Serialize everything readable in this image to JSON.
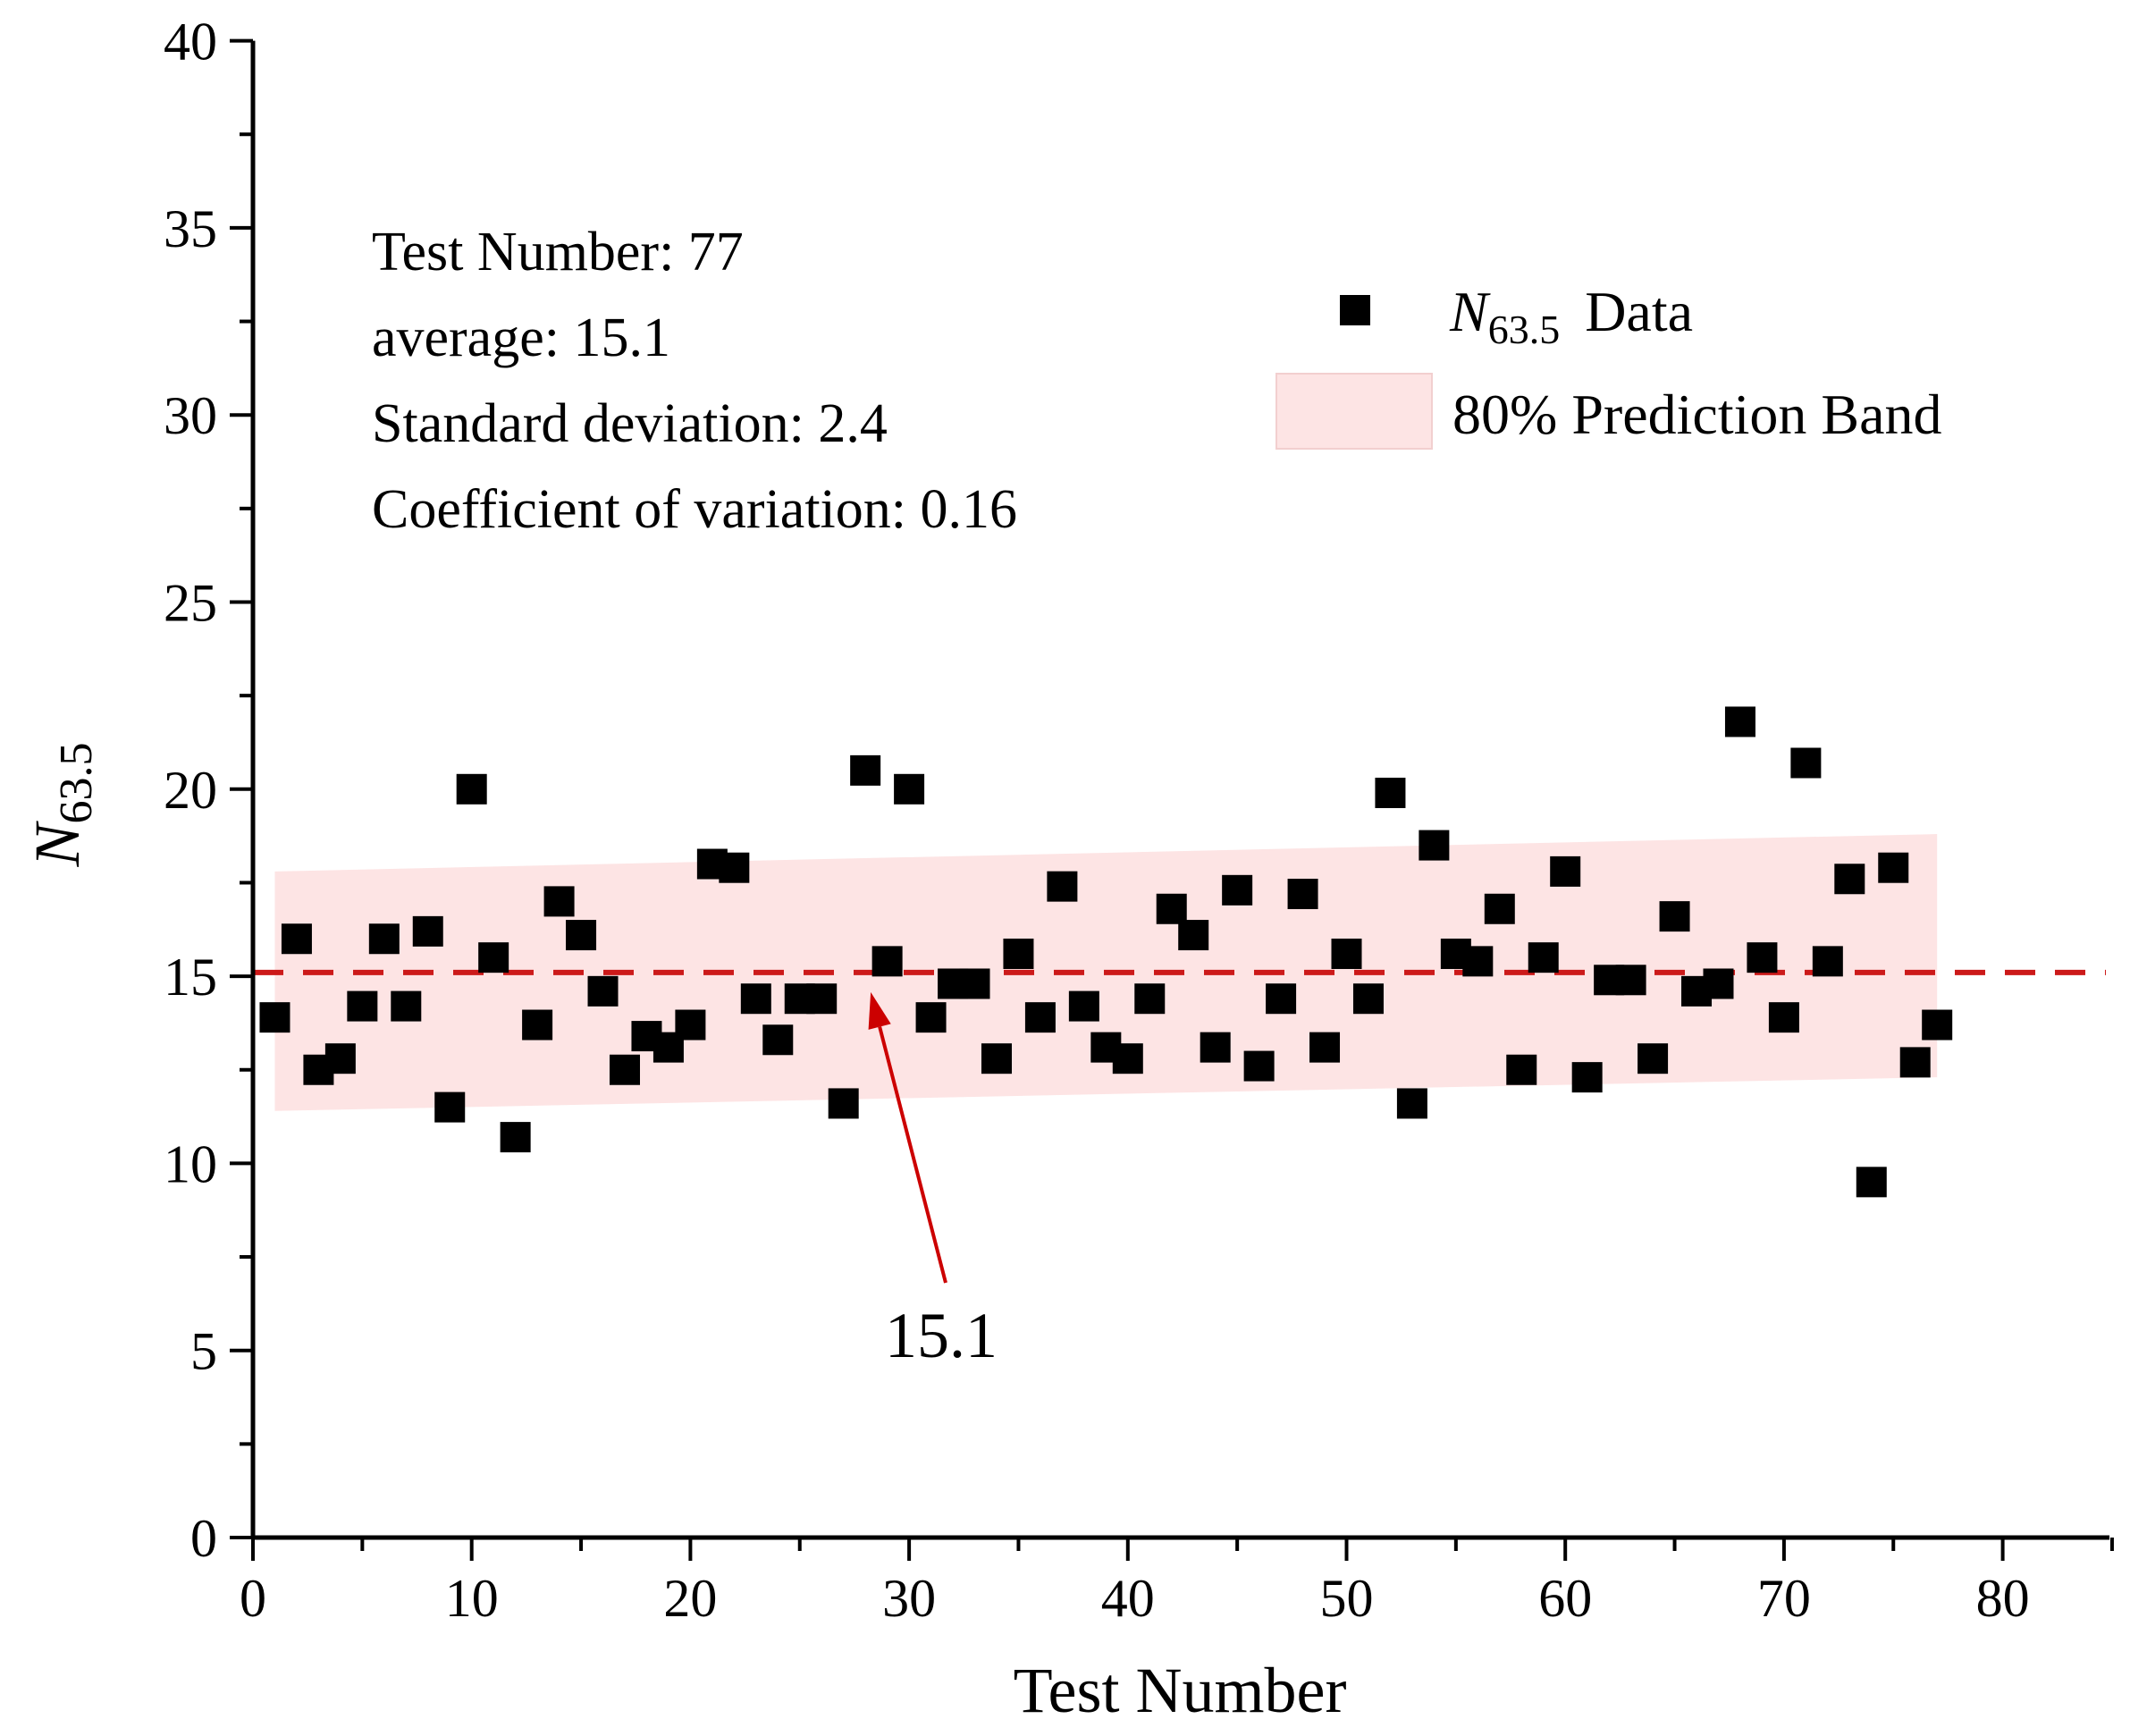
{
  "chart_data": {
    "type": "scatter",
    "title": "",
    "xlabel": "Test Number",
    "ylabel": {
      "main": "N",
      "sub": "63.5"
    },
    "xlim": [
      0,
      85
    ],
    "ylim": [
      0,
      40
    ],
    "xticks": [
      0,
      10,
      20,
      30,
      40,
      50,
      60,
      70,
      80
    ],
    "yticks": [
      0,
      5,
      10,
      15,
      20,
      25,
      30,
      35,
      40
    ],
    "xtick_labels": [
      "0",
      "10",
      "20",
      "30",
      "40",
      "50",
      "60",
      "70",
      "80"
    ],
    "ytick_labels": [
      "0",
      "5",
      "10",
      "15",
      "20",
      "25",
      "30",
      "35",
      "40"
    ],
    "grid": false,
    "legend_position": "top-right",
    "series": [
      {
        "name": "N63.5 Data",
        "marker": "square",
        "color": "#000000",
        "x": [
          1,
          2,
          3,
          4,
          5,
          6,
          7,
          8,
          9,
          10,
          11,
          12,
          13,
          14,
          15,
          16,
          17,
          18,
          19,
          20,
          21,
          22,
          23,
          24,
          25,
          26,
          27,
          28,
          29,
          30,
          31,
          32,
          33,
          34,
          35,
          36,
          37,
          38,
          39,
          40,
          41,
          42,
          43,
          44,
          45,
          46,
          47,
          48,
          49,
          50,
          51,
          52,
          53,
          54,
          55,
          56,
          57,
          58,
          59,
          60,
          61,
          62,
          63,
          64,
          65,
          66,
          67,
          68,
          69,
          70,
          71,
          72,
          73,
          74,
          75,
          76,
          77
        ],
        "y": [
          13.9,
          16.0,
          12.5,
          12.8,
          14.2,
          16.0,
          14.2,
          16.2,
          11.5,
          20.0,
          15.5,
          10.7,
          13.7,
          17.0,
          16.1,
          14.6,
          12.5,
          13.4,
          13.1,
          13.7,
          18.0,
          17.9,
          14.4,
          13.3,
          14.4,
          14.4,
          11.6,
          20.5,
          15.4,
          20.0,
          13.9,
          14.8,
          14.8,
          12.8,
          15.6,
          13.9,
          17.4,
          14.2,
          13.1,
          12.8,
          14.4,
          16.8,
          16.1,
          13.1,
          17.3,
          12.6,
          14.4,
          17.2,
          13.1,
          15.6,
          14.4,
          19.9,
          11.6,
          18.5,
          15.6,
          15.4,
          16.8,
          12.5,
          15.5,
          17.8,
          12.3,
          14.9,
          14.9,
          12.8,
          16.6,
          14.6,
          14.8,
          21.8,
          15.5,
          13.9,
          20.7,
          15.4,
          17.6,
          9.5,
          17.9,
          12.7,
          13.7
        ]
      }
    ],
    "prediction_band": {
      "name": "80% Prediction Band",
      "color": "#fde4e4",
      "x": [
        1,
        77
      ],
      "upper": [
        17.8,
        18.8
      ],
      "lower": [
        11.4,
        12.3
      ]
    },
    "mean_line": {
      "value": 15.1,
      "color": "#cc1a1a",
      "style": "dashed"
    },
    "annotation": {
      "text": "15.1",
      "points_to": [
        28,
        15.1
      ],
      "color": "#cc0000"
    },
    "stats": [
      "Test Number: 77",
      "average: 15.1",
      "Standard deviation: 2.4",
      "Coefficient of variation: 0.16"
    ],
    "legend": {
      "data_label_main": "N",
      "data_label_sub": "63.5",
      "data_label_suffix": "Data",
      "band_label": "80%  Prediction Band"
    }
  }
}
